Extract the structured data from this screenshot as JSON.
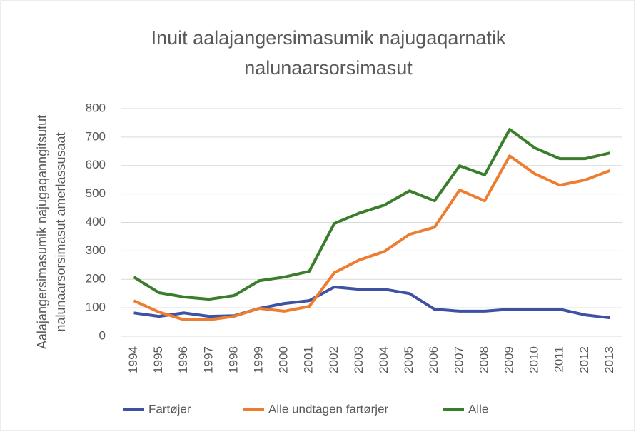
{
  "chart_data": {
    "type": "line",
    "title": [
      "Inuit aalajangersimasumik najugaqarnatik",
      "nalunaarsorsimasut"
    ],
    "y_label": [
      "Aalajangersimasumik najugaqanngitsutut",
      "nalunaarsorsimasut amerlassusaat"
    ],
    "categories": [
      "1994",
      "1995",
      "1996",
      "1997",
      "1998",
      "1999",
      "2000",
      "2001",
      "2002",
      "2003",
      "2004",
      "2005",
      "2006",
      "2007",
      "2008",
      "2009",
      "2010",
      "2011",
      "2012",
      "2013"
    ],
    "series": [
      {
        "name": "Fartøjer",
        "color": "#3f51a3",
        "values": [
          82,
          70,
          82,
          70,
          72,
          98,
          115,
          125,
          173,
          165,
          165,
          150,
          95,
          88,
          88,
          95,
          93,
          95,
          75,
          65
        ]
      },
      {
        "name": "Alle undtagen fartørjer",
        "color": "#ed7d31",
        "values": [
          125,
          85,
          58,
          58,
          70,
          98,
          88,
          105,
          223,
          268,
          298,
          358,
          383,
          514,
          476,
          634,
          571,
          531,
          549,
          582
        ]
      },
      {
        "name": "Alle",
        "color": "#3a7d2c",
        "values": [
          208,
          153,
          138,
          130,
          143,
          195,
          208,
          228,
          396,
          433,
          461,
          511,
          476,
          599,
          567,
          727,
          662,
          624,
          624,
          644
        ]
      }
    ],
    "ylim": [
      0,
      800
    ],
    "yticks": [
      0,
      100,
      200,
      300,
      400,
      500,
      600,
      700,
      800
    ],
    "grid": true,
    "legend": "bottom"
  }
}
